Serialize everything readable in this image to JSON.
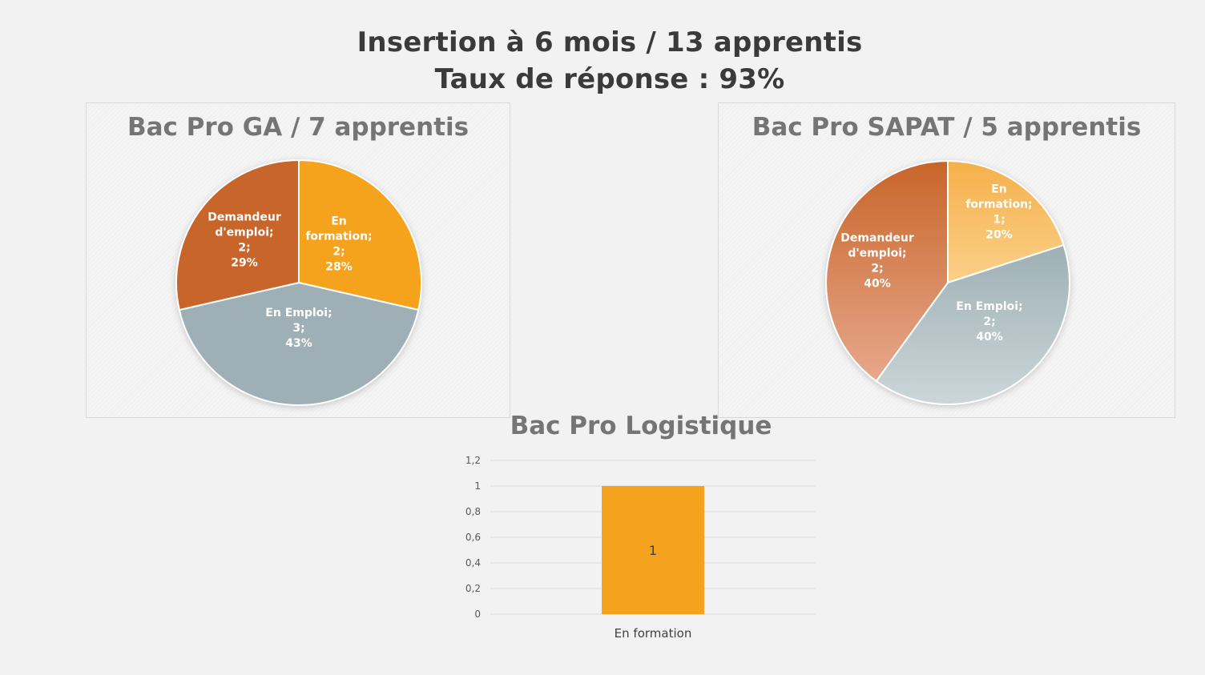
{
  "title": {
    "line1": "Insertion à 6 mois / 13 apprentis",
    "line2": "Taux de réponse : 93%"
  },
  "chart_data": [
    {
      "type": "pie",
      "title": "Bac Pro GA / 7 apprentis",
      "slices": [
        {
          "label_lines": [
            "En",
            "formation;",
            "2;",
            "28%"
          ],
          "name": "En formation",
          "value": 2,
          "percent": 28,
          "color": "#f5a21f"
        },
        {
          "label_lines": [
            "En Emploi;",
            "3;",
            "43%"
          ],
          "name": "En Emploi",
          "value": 3,
          "percent": 43,
          "color": "#9eb0b5"
        },
        {
          "label_lines": [
            "Demandeur",
            "d'emploi;",
            "2;",
            "29%"
          ],
          "name": "Demandeur d'emploi",
          "value": 2,
          "percent": 29,
          "color": "#c8652a"
        }
      ]
    },
    {
      "type": "pie",
      "title": "Bac Pro SAPAT / 5 apprentis",
      "slices": [
        {
          "label_lines": [
            "En",
            "formation;",
            "1;",
            "20%"
          ],
          "name": "En formation",
          "value": 1,
          "percent": 20,
          "color": "#f5b04a",
          "color2": "#fbd08a"
        },
        {
          "label_lines": [
            "En Emploi;",
            "2;",
            "40%"
          ],
          "name": "En Emploi",
          "value": 2,
          "percent": 40,
          "color": "#9eb0b5",
          "color2": "#cbd6d9"
        },
        {
          "label_lines": [
            "Demandeur",
            "d'emploi;",
            "2;",
            "40%"
          ],
          "name": "Demandeur d'emploi",
          "value": 2,
          "percent": 40,
          "color": "#c8652a",
          "color2": "#e7a88c"
        }
      ]
    },
    {
      "type": "bar",
      "title": "Bac Pro Logistique",
      "categories": [
        "En formation"
      ],
      "values": [
        1
      ],
      "data_labels": [
        "1"
      ],
      "ylim": [
        0,
        1.2
      ],
      "yticks": [
        "0",
        "0,2",
        "0,4",
        "0,6",
        "0,8",
        "1",
        "1,2"
      ],
      "grid": true,
      "color": "#f5a21f"
    }
  ]
}
